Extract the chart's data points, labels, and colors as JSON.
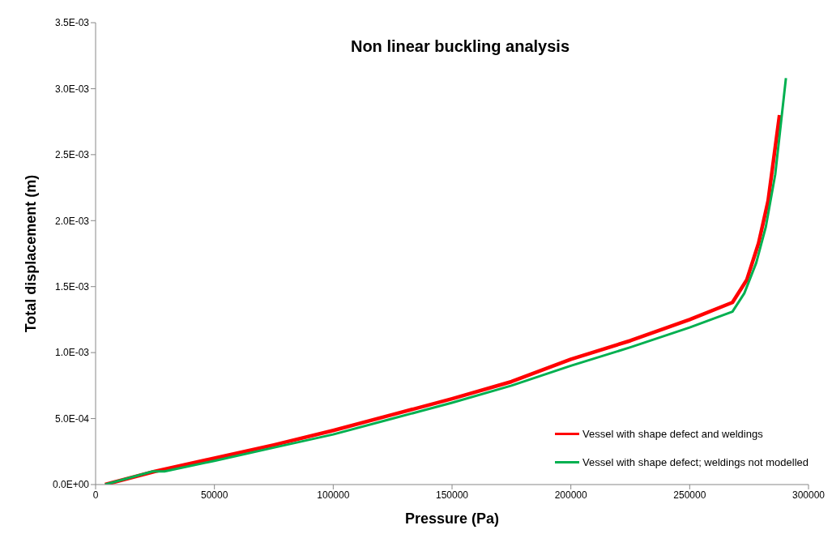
{
  "chart_data": {
    "type": "line",
    "title": "Non linear buckling analysis",
    "xlabel": "Pressure (Pa)",
    "ylabel": "Total displacement  (m)",
    "xlim": [
      0,
      300000
    ],
    "xticks": [
      0,
      50000,
      100000,
      150000,
      200000,
      250000,
      300000
    ],
    "ylim": [
      0,
      0.0035
    ],
    "yticks": [
      {
        "value": 0,
        "label": "0.0E+00"
      },
      {
        "value": 0.0005,
        "label": "5.0E-04"
      },
      {
        "value": 0.001,
        "label": "1.0E-03"
      },
      {
        "value": 0.0015,
        "label": "1.5E-03"
      },
      {
        "value": 0.002,
        "label": "2.0E-03"
      },
      {
        "value": 0.0025,
        "label": "2.5E-03"
      },
      {
        "value": 0.003,
        "label": "3.0E-03"
      },
      {
        "value": 0.0035,
        "label": "3.5E-03"
      }
    ],
    "grid": false,
    "legend": "bottom right",
    "marker": "none",
    "line_style": "solid",
    "series": [
      {
        "name": "Vessel with shape defect and weldings",
        "color": "#ff0000",
        "x": [
          4000,
          25000,
          50000,
          75000,
          100000,
          125000,
          150000,
          175000,
          200000,
          225000,
          250000,
          268000,
          274000,
          279000,
          283000,
          287800
        ],
        "values": [
          0,
          0.0001,
          0.0002,
          0.0003,
          0.00041,
          0.00053,
          0.00065,
          0.00078,
          0.00095,
          0.00109,
          0.00125,
          0.00138,
          0.00155,
          0.00183,
          0.00215,
          0.0028
        ]
      },
      {
        "name": "Vessel with shape defect; weldings not modelled",
        "color": "#00b050",
        "x": [
          4000,
          24000,
          29000,
          50000,
          75000,
          100000,
          125000,
          150000,
          175000,
          200000,
          225000,
          250000,
          268000,
          273000,
          278000,
          282000,
          286000,
          290500
        ],
        "values": [
          0,
          0.0001,
          0.0001,
          0.00018,
          0.00028,
          0.00038,
          0.0005,
          0.00062,
          0.00075,
          0.0009,
          0.00104,
          0.00119,
          0.00131,
          0.00145,
          0.00168,
          0.00195,
          0.00235,
          0.00308
        ]
      }
    ]
  }
}
